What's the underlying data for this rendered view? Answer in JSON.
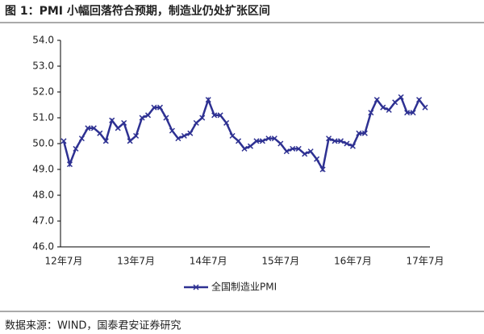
{
  "chart_data": {
    "type": "line",
    "title": "图 1：PMI 小幅回落符合预期，制造业仍处扩张区间",
    "source": "数据来源：WIND，国泰君安证券研究",
    "categories": [
      "12年7月",
      null,
      null,
      null,
      null,
      null,
      null,
      null,
      null,
      null,
      null,
      null,
      "13年7月",
      null,
      null,
      null,
      null,
      null,
      null,
      null,
      null,
      null,
      null,
      null,
      "14年7月",
      null,
      null,
      null,
      null,
      null,
      null,
      null,
      null,
      null,
      null,
      null,
      "15年7月",
      null,
      null,
      null,
      null,
      null,
      null,
      null,
      null,
      null,
      null,
      null,
      "16年7月",
      null,
      null,
      null,
      null,
      null,
      null,
      null,
      null,
      null,
      null,
      null,
      "17年7月"
    ],
    "series": [
      {
        "name": "全国制造业PMI",
        "color": "#2e3192",
        "values": [
          50.1,
          49.2,
          49.8,
          50.2,
          50.6,
          50.6,
          50.4,
          50.1,
          50.9,
          50.6,
          50.8,
          50.1,
          50.3,
          51.0,
          51.1,
          51.4,
          51.4,
          51.0,
          50.5,
          50.2,
          50.3,
          50.4,
          50.8,
          51.0,
          51.7,
          51.1,
          51.1,
          50.8,
          50.3,
          50.1,
          49.8,
          49.9,
          50.1,
          50.1,
          50.2,
          50.2,
          50.0,
          49.7,
          49.8,
          49.8,
          49.6,
          49.7,
          49.4,
          49.0,
          50.2,
          50.1,
          50.1,
          50.0,
          49.9,
          50.4,
          50.4,
          51.2,
          51.7,
          51.4,
          51.3,
          51.6,
          51.8,
          51.2,
          51.2,
          51.7,
          51.4
        ]
      }
    ],
    "ylim": [
      46,
      54
    ],
    "yticks": [
      {
        "value": 46,
        "label": "46.0"
      },
      {
        "value": 47,
        "label": "47.0"
      },
      {
        "value": 48,
        "label": "48.0"
      },
      {
        "value": 49,
        "label": "49.0"
      },
      {
        "value": 50,
        "label": "50.0"
      },
      {
        "value": 51,
        "label": "51.0"
      },
      {
        "value": 52,
        "label": "52.0"
      },
      {
        "value": 53,
        "label": "53.0"
      },
      {
        "value": 54,
        "label": "54.0"
      }
    ],
    "legend": "bottom"
  }
}
